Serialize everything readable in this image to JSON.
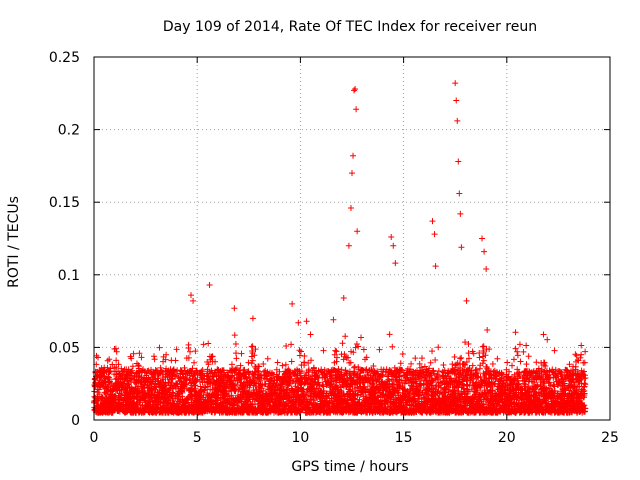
{
  "chart_data": {
    "type": "scatter",
    "title": "Day 109 of 2014, Rate Of TEC Index for receiver reun",
    "xlabel": "GPS time / hours",
    "ylabel": "ROTI / TECUs",
    "xlim": [
      0,
      25
    ],
    "ylim": [
      0,
      0.25
    ],
    "xticks": [
      0,
      5,
      10,
      15,
      20,
      25
    ],
    "yticks": [
      0,
      0.05,
      0.1,
      0.15,
      0.2,
      0.25
    ],
    "xtick_labels": [
      "0",
      "5",
      "10",
      "15",
      "20",
      "25"
    ],
    "ytick_labels": [
      "0",
      "0.05",
      "0.1",
      "0.15",
      "0.2",
      "0.25"
    ],
    "grid": true,
    "marker": "+",
    "color": "#ff0000",
    "series": [
      {
        "name": "ROTI",
        "x_range": [
          0,
          23.8
        ],
        "baseline_band": [
          0.005,
          0.035
        ],
        "notable_points": [
          [
            0.1,
            0.03
          ],
          [
            1.1,
            0.047
          ],
          [
            2.2,
            0.046
          ],
          [
            4.7,
            0.086
          ],
          [
            4.8,
            0.082
          ],
          [
            5.6,
            0.093
          ],
          [
            6.8,
            0.077
          ],
          [
            7.7,
            0.07
          ],
          [
            9.6,
            0.08
          ],
          [
            9.9,
            0.067
          ],
          [
            10.3,
            0.068
          ],
          [
            11.6,
            0.069
          ],
          [
            12.1,
            0.084
          ],
          [
            12.35,
            0.12
          ],
          [
            12.45,
            0.146
          ],
          [
            12.5,
            0.17
          ],
          [
            12.55,
            0.182
          ],
          [
            12.6,
            0.227
          ],
          [
            12.65,
            0.228
          ],
          [
            12.7,
            0.214
          ],
          [
            12.75,
            0.13
          ],
          [
            14.4,
            0.126
          ],
          [
            14.5,
            0.12
          ],
          [
            14.6,
            0.108
          ],
          [
            16.4,
            0.137
          ],
          [
            16.5,
            0.128
          ],
          [
            16.55,
            0.106
          ],
          [
            17.5,
            0.232
          ],
          [
            17.55,
            0.22
          ],
          [
            17.6,
            0.206
          ],
          [
            17.65,
            0.178
          ],
          [
            17.7,
            0.156
          ],
          [
            17.75,
            0.142
          ],
          [
            17.8,
            0.119
          ],
          [
            18.05,
            0.082
          ],
          [
            18.8,
            0.125
          ],
          [
            18.9,
            0.116
          ],
          [
            19.0,
            0.104
          ],
          [
            19.05,
            0.062
          ],
          [
            20.5,
            0.047
          ],
          [
            21.8,
            0.038
          ],
          [
            23.6,
            0.045
          ]
        ]
      }
    ]
  }
}
